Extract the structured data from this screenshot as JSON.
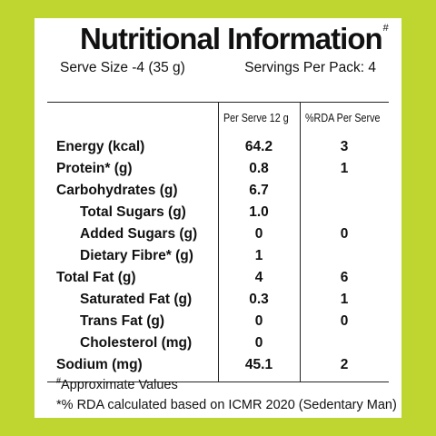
{
  "colors": {
    "border": "#bfd631",
    "text": "#111111"
  },
  "title": "Nutritional Information",
  "title_mark": "#",
  "serve_size": "Serve Size -4 (35 g)",
  "servings_per_pack": "Servings Per Pack: 4",
  "headers": {
    "per_serve": "Per Serve 12 g",
    "rda": "%RDA Per Serve"
  },
  "rows": [
    {
      "name": "Energy (kcal)",
      "per_serve": "64.2",
      "rda": "3"
    },
    {
      "name": "Protein* (g)",
      "per_serve": "0.8",
      "rda": "1"
    },
    {
      "name": "Carbohydrates (g)",
      "per_serve": "6.7",
      "rda": ""
    },
    {
      "name": "Total Sugars (g)",
      "per_serve": "1.0",
      "rda": ""
    },
    {
      "name": "Added Sugars (g)",
      "per_serve": "0",
      "rda": "0"
    },
    {
      "name": "Dietary Fibre* (g)",
      "per_serve": "1",
      "rda": ""
    },
    {
      "name": "Total Fat (g)",
      "per_serve": "4",
      "rda": "6"
    },
    {
      "name": "Saturated Fat (g)",
      "per_serve": "0.3",
      "rda": "1"
    },
    {
      "name": "Trans Fat (g)",
      "per_serve": "0",
      "rda": "0"
    },
    {
      "name": "Cholesterol (mg)",
      "per_serve": "0",
      "rda": ""
    },
    {
      "name": "Sodium (mg)",
      "per_serve": "45.1",
      "rda": "2"
    }
  ],
  "footnotes": {
    "approx_mark": "#",
    "approx": "Approximate Values",
    "rda_note": "*% RDA calculated based on ICMR 2020 (Sedentary Man)"
  }
}
